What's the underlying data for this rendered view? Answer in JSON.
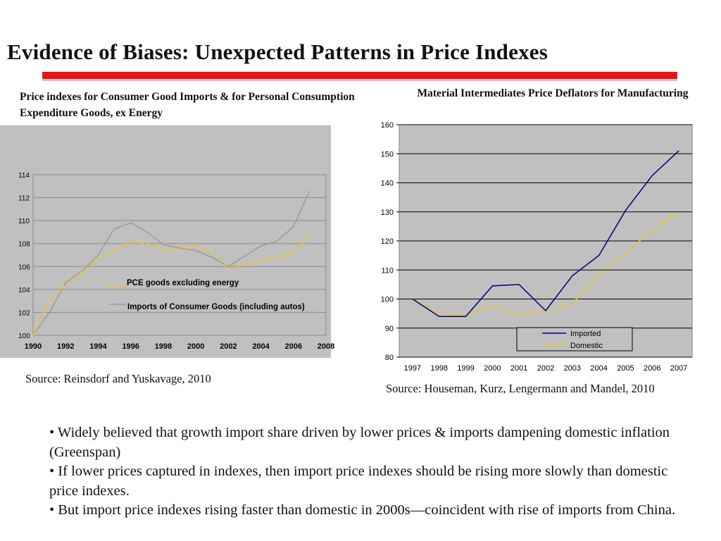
{
  "slide": {
    "title": "Evidence of Biases: Unexpected Patterns in Price Indexes",
    "accent_color": "#e4161b"
  },
  "left_chart": {
    "title": "Price indexes for Consumer Good Imports & for Personal Consumption Expenditure Goods, ex Energy",
    "source": "Source: Reinsdorf and Yuskavage, 2010"
  },
  "right_chart": {
    "title": "Material Intermediates Price Deflators for Manufacturing",
    "source": "Source:  Houseman, Kurz, Lengermann and Mandel, 2010"
  },
  "bullets": [
    "• Widely believed that growth import share driven by lower prices & imports dampening domestic inflation (Greenspan)",
    "•  If lower prices captured in indexes, then import price indexes should be rising more slowly than domestic price indexes.",
    "• But import price indexes rising faster than domestic in 2000s—coincident with rise of imports from China."
  ],
  "chart_data": [
    {
      "type": "line",
      "title": "Price indexes for Consumer Good Imports & for Personal Consumption Expenditure Goods, ex Energy",
      "xlabel": "",
      "ylabel": "",
      "xlim": [
        1990,
        2008
      ],
      "ylim": [
        100,
        114
      ],
      "y_ticks": [
        100,
        102,
        104,
        106,
        108,
        110,
        112,
        114
      ],
      "x_ticks": [
        1990,
        1992,
        1994,
        1996,
        1998,
        2000,
        2002,
        2004,
        2006,
        2008
      ],
      "grid": true,
      "legend_position": "center",
      "series": [
        {
          "name": "PCE goods excluding energy",
          "color": "#f0c419",
          "dash": "dashed",
          "x": [
            1990,
            1991,
            1992,
            1993,
            1994,
            1995,
            1996,
            1997,
            1998,
            1999,
            2000,
            2001,
            2002,
            2003,
            2004,
            2005,
            2006,
            2007
          ],
          "values": [
            100.0,
            103.0,
            104.4,
            105.5,
            106.6,
            107.4,
            108.1,
            108.0,
            107.4,
            107.5,
            107.8,
            107.2,
            105.8,
            106.2,
            106.5,
            106.7,
            107.2,
            108.6
          ]
        },
        {
          "name": "Imports of Consumer Goods (including autos)",
          "color": "#9a9a9a",
          "dash": "solid",
          "x": [
            1990,
            1991,
            1992,
            1993,
            1994,
            1995,
            1996,
            1997,
            1998,
            1999,
            2000,
            2001,
            2002,
            2003,
            2004,
            2005,
            2006,
            2007
          ],
          "values": [
            100.0,
            102.0,
            104.6,
            105.6,
            107.0,
            109.3,
            109.8,
            109.0,
            107.9,
            107.6,
            107.4,
            106.8,
            106.0,
            106.9,
            107.8,
            108.2,
            109.5,
            112.6
          ]
        }
      ]
    },
    {
      "type": "line",
      "title": "Material Intermediates Price Deflators for Manufacturing",
      "xlabel": "",
      "ylabel": "",
      "ylim": [
        80,
        160
      ],
      "y_ticks": [
        80,
        90,
        100,
        110,
        120,
        130,
        140,
        150,
        160
      ],
      "categories": [
        "1997",
        "1998",
        "1999",
        "2000",
        "2001",
        "2002",
        "2003",
        "2004",
        "2005",
        "2006",
        "2007"
      ],
      "grid": true,
      "legend_position": "bottom-right",
      "series": [
        {
          "name": "Imported",
          "color": "#00007a",
          "dash": "solid",
          "values": [
            100,
            94,
            94,
            104.5,
            105,
            96,
            108,
            115,
            130.5,
            142.5,
            151
          ]
        },
        {
          "name": "Domestic",
          "color": "#f0c419",
          "dash": "dashed",
          "values": [
            100,
            95,
            94.5,
            97.5,
            94.5,
            96,
            98.5,
            108,
            116,
            123.5,
            130
          ]
        }
      ]
    }
  ]
}
